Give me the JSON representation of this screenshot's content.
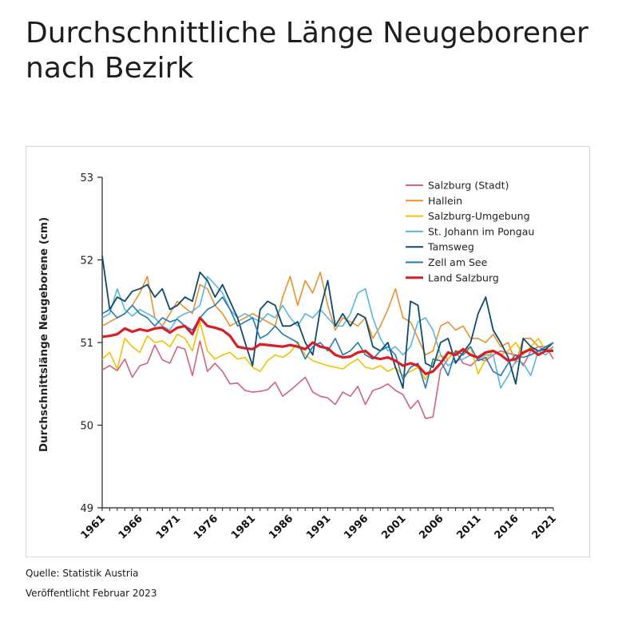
{
  "page": {
    "title": "Durchschnittliche Länge Neugeborener nach Bezirk",
    "source": "Quelle: Statistik Austria",
    "published": "Veröffentlicht Februar 2023"
  },
  "chart_data": {
    "type": "line",
    "title": "Durchschnittliche Länge Neugeborener nach Bezirk",
    "xlabel": "",
    "ylabel": "Durchschnittslänge Neugeborene (cm)",
    "ylim": [
      49,
      53
    ],
    "yticks": [
      49,
      50,
      51,
      52,
      53
    ],
    "xlim": [
      1961,
      2021
    ],
    "xticks": [
      1961,
      1966,
      1971,
      1976,
      1981,
      1986,
      1991,
      1996,
      2001,
      2006,
      2011,
      2016,
      2021
    ],
    "grid": false,
    "legend": "top-right",
    "x": [
      1961,
      1962,
      1963,
      1964,
      1965,
      1966,
      1967,
      1968,
      1969,
      1970,
      1971,
      1972,
      1973,
      1974,
      1975,
      1976,
      1977,
      1978,
      1979,
      1980,
      1981,
      1982,
      1983,
      1984,
      1985,
      1986,
      1987,
      1988,
      1989,
      1990,
      1991,
      1992,
      1993,
      1994,
      1995,
      1996,
      1997,
      1998,
      1999,
      2000,
      2001,
      2002,
      2003,
      2004,
      2005,
      2006,
      2007,
      2008,
      2009,
      2010,
      2011,
      2012,
      2013,
      2014,
      2015,
      2016,
      2017,
      2018,
      2019,
      2020,
      2021
    ],
    "series": [
      {
        "name": "Salzburg (Stadt)",
        "color": "#d0637d",
        "width": 1.6,
        "values": [
          50.67,
          50.72,
          50.66,
          50.8,
          50.58,
          50.72,
          50.75,
          50.97,
          50.79,
          50.75,
          50.95,
          50.92,
          50.6,
          51.02,
          50.65,
          50.75,
          50.65,
          50.5,
          50.51,
          50.42,
          50.4,
          50.41,
          50.43,
          50.52,
          50.35,
          50.42,
          50.5,
          50.58,
          50.4,
          50.35,
          50.33,
          50.25,
          50.4,
          50.35,
          50.47,
          50.25,
          50.42,
          50.45,
          50.5,
          50.42,
          50.37,
          50.2,
          50.3,
          50.08,
          50.1,
          50.67,
          50.8,
          50.9,
          50.75,
          50.72,
          50.8,
          50.78,
          50.85,
          50.9,
          50.87,
          50.85,
          50.72,
          50.9,
          50.95,
          50.95,
          50.8
        ]
      },
      {
        "name": "Hallein",
        "color": "#e8922e",
        "width": 1.6,
        "values": [
          51.2,
          51.25,
          51.3,
          51.35,
          51.45,
          51.6,
          51.8,
          51.3,
          51.2,
          51.35,
          51.5,
          51.42,
          51.35,
          51.7,
          51.65,
          51.45,
          51.35,
          51.2,
          51.25,
          51.3,
          51.35,
          51.3,
          51.25,
          51.2,
          51.55,
          51.8,
          51.45,
          51.75,
          51.6,
          51.85,
          51.45,
          51.15,
          51.3,
          51.25,
          51.2,
          51.3,
          51.05,
          51.2,
          51.4,
          51.65,
          51.3,
          51.25,
          51.05,
          50.85,
          50.9,
          51.2,
          51.25,
          51.15,
          51.2,
          51.05,
          51.05,
          51.0,
          51.1,
          50.95,
          51.0,
          50.75,
          51.05,
          51.05,
          50.95,
          50.9,
          50.95
        ]
      },
      {
        "name": "Salzburg-Umgebung",
        "color": "#f2c200",
        "width": 1.6,
        "values": [
          50.8,
          50.88,
          50.68,
          51.05,
          50.95,
          50.88,
          51.08,
          51.0,
          51.02,
          50.95,
          51.1,
          51.05,
          50.9,
          51.25,
          50.9,
          50.8,
          50.85,
          50.88,
          50.8,
          50.82,
          50.7,
          50.65,
          50.78,
          50.85,
          50.82,
          50.88,
          51.0,
          50.85,
          50.78,
          50.75,
          50.72,
          50.7,
          50.68,
          50.75,
          50.8,
          50.7,
          50.68,
          50.72,
          50.65,
          50.7,
          50.6,
          50.65,
          50.7,
          50.55,
          50.75,
          50.85,
          50.8,
          50.9,
          50.9,
          50.95,
          50.62,
          50.8,
          50.9,
          50.85,
          50.9,
          51.0,
          50.85,
          50.95,
          51.05,
          50.9,
          50.95
        ]
      },
      {
        "name": "St. Johann im Pongau",
        "color": "#5ab6e0",
        "width": 1.6,
        "values": [
          51.3,
          51.35,
          51.65,
          51.4,
          51.32,
          51.4,
          51.35,
          51.3,
          51.2,
          51.15,
          51.3,
          51.35,
          51.38,
          51.45,
          51.8,
          51.7,
          51.6,
          51.4,
          51.3,
          51.35,
          51.3,
          51.25,
          51.35,
          51.3,
          51.45,
          51.3,
          51.2,
          51.35,
          51.3,
          51.4,
          51.3,
          51.2,
          51.2,
          51.35,
          51.6,
          51.65,
          51.3,
          51.05,
          50.9,
          50.95,
          50.85,
          50.95,
          51.25,
          51.3,
          51.15,
          50.85,
          50.72,
          50.78,
          50.8,
          50.85,
          50.8,
          50.85,
          50.85,
          50.45,
          50.6,
          50.78,
          50.75,
          50.6,
          50.9,
          50.85,
          50.95
        ]
      },
      {
        "name": "Tamsweg",
        "color": "#0d4a6e",
        "width": 1.8,
        "values": [
          52.05,
          51.4,
          51.55,
          51.5,
          51.62,
          51.65,
          51.7,
          51.55,
          51.65,
          51.4,
          51.45,
          51.55,
          51.5,
          51.85,
          51.75,
          51.55,
          51.7,
          51.5,
          51.3,
          51.0,
          50.72,
          51.4,
          51.5,
          51.45,
          51.2,
          51.2,
          51.25,
          51.0,
          50.85,
          51.4,
          51.75,
          51.2,
          51.35,
          51.2,
          51.35,
          51.3,
          50.95,
          50.9,
          51.0,
          50.7,
          50.45,
          51.5,
          51.45,
          50.75,
          50.7,
          51.0,
          51.05,
          50.75,
          50.88,
          51.0,
          51.35,
          51.55,
          51.15,
          51.0,
          50.82,
          50.5,
          51.05,
          50.95,
          50.9,
          50.92,
          51.0
        ]
      },
      {
        "name": "Zell am See",
        "color": "#2279b5",
        "width": 1.6,
        "values": [
          51.35,
          51.4,
          51.3,
          51.35,
          51.45,
          51.35,
          51.3,
          51.2,
          51.3,
          51.25,
          51.28,
          51.2,
          51.15,
          51.3,
          51.4,
          51.45,
          51.55,
          51.4,
          51.2,
          51.25,
          51.3,
          51.05,
          51.1,
          51.2,
          51.1,
          51.05,
          51.0,
          50.8,
          50.95,
          51.0,
          50.9,
          51.05,
          50.85,
          50.9,
          51.0,
          50.85,
          50.8,
          50.9,
          50.95,
          50.85,
          50.55,
          50.7,
          50.75,
          50.45,
          50.8,
          50.78,
          50.6,
          50.9,
          50.85,
          50.95,
          50.78,
          50.82,
          50.65,
          50.6,
          50.75,
          50.85,
          50.82,
          50.85,
          50.9,
          50.95,
          51.0
        ]
      },
      {
        "name": "Land Salzburg",
        "color": "#d61f26",
        "width": 3.2,
        "values": [
          51.07,
          51.08,
          51.1,
          51.17,
          51.13,
          51.16,
          51.14,
          51.17,
          51.18,
          51.12,
          51.18,
          51.2,
          51.1,
          51.3,
          51.2,
          51.18,
          51.15,
          51.08,
          50.95,
          50.93,
          50.92,
          50.98,
          50.97,
          50.96,
          50.95,
          50.97,
          50.95,
          50.92,
          51.0,
          50.95,
          50.93,
          50.85,
          50.82,
          50.83,
          50.88,
          50.9,
          50.82,
          50.8,
          50.82,
          50.78,
          50.72,
          50.75,
          50.72,
          50.62,
          50.65,
          50.75,
          50.88,
          50.85,
          50.92,
          50.85,
          50.82,
          50.88,
          50.9,
          50.85,
          50.78,
          50.8,
          50.88,
          50.92,
          50.85,
          50.9,
          50.9
        ]
      }
    ]
  }
}
